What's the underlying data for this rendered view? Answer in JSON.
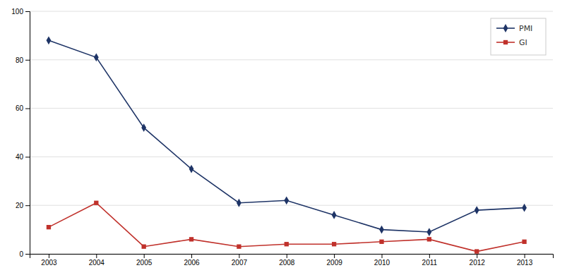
{
  "chart_data": {
    "type": "line",
    "x": [
      2003,
      2004,
      2005,
      2006,
      2007,
      2008,
      2009,
      2010,
      2011,
      2012,
      2013
    ],
    "xlim": [
      2002.6,
      2013.6
    ],
    "xticks": [
      2003,
      2004,
      2005,
      2006,
      2007,
      2008,
      2009,
      2010,
      2011,
      2012,
      2013
    ],
    "ylim": [
      0,
      100
    ],
    "yticks": [
      0,
      20,
      40,
      60,
      80,
      100
    ],
    "grid": true,
    "legend": "upper right",
    "series": [
      {
        "name": "PMI",
        "color": "#1e3466",
        "marker": "diamond",
        "values": [
          88,
          81,
          52,
          35,
          21,
          22,
          16,
          10,
          9,
          18,
          19
        ]
      },
      {
        "name": "GI",
        "color": "#c0312b",
        "marker": "square",
        "values": [
          11,
          21,
          3,
          6,
          3,
          4,
          4,
          5,
          6,
          1,
          5
        ]
      }
    ]
  }
}
